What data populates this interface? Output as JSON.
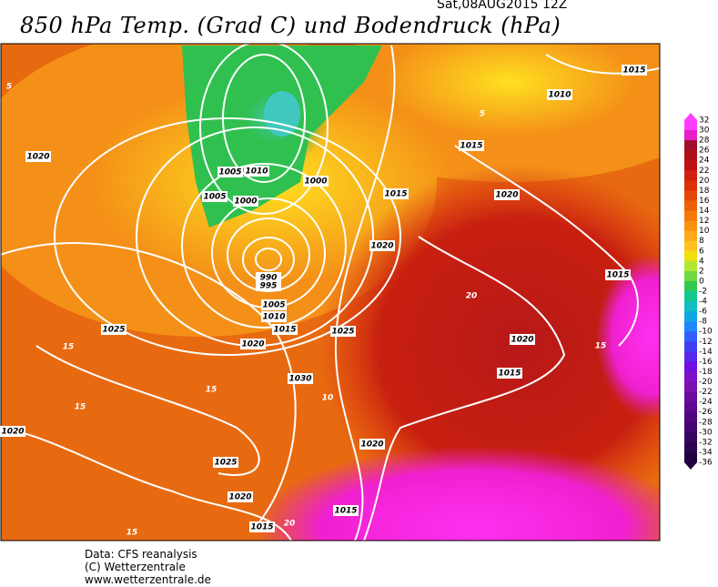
{
  "header": {
    "title": "850 hPa Temp. (Grad C) und Bodendruck (hPa)",
    "date": "Sat,08AUG2015 12Z"
  },
  "footer": {
    "lines": [
      "Data: CFS reanalysis",
      "(C) Wetterzentrale",
      "www.wetterzentrale.de"
    ]
  },
  "colorbar": {
    "labels": [
      "32",
      "30",
      "28",
      "26",
      "24",
      "22",
      "20",
      "18",
      "16",
      "14",
      "12",
      "10",
      "8",
      "6",
      "4",
      "2",
      "0",
      "-2",
      "-4",
      "-6",
      "-8",
      "-10",
      "-12",
      "-14",
      "-16",
      "-18",
      "-20",
      "-22",
      "-24",
      "-26",
      "-28",
      "-30",
      "-32",
      "-34",
      "-36"
    ],
    "colors": [
      "#ff3cff",
      "#e81ec8",
      "#a0102a",
      "#b01018",
      "#c01010",
      "#d02010",
      "#dc3008",
      "#e44808",
      "#ec6008",
      "#f47808",
      "#fa9010",
      "#ffa818",
      "#ffc020",
      "#f0e010",
      "#b0e830",
      "#70d840",
      "#30c850",
      "#10c890",
      "#10c0c0",
      "#10a8e0",
      "#2088ff",
      "#3060ff",
      "#4040f0",
      "#5828e8",
      "#7010e0",
      "#8010c8",
      "#7a10b0",
      "#6c0aa0",
      "#5e0890",
      "#500680",
      "#440570",
      "#380460",
      "#2c0350",
      "#200240"
    ]
  },
  "map_labels": [
    "1010",
    "1015",
    "1020",
    "1005",
    "1010",
    "1000",
    "1005",
    "1000",
    "1015",
    "1015",
    "1020",
    "1020",
    "990",
    "995",
    "1005",
    "1010",
    "1015",
    "1025",
    "1025",
    "1020",
    "1015",
    "1020",
    "1015",
    "1030",
    "1020",
    "1020",
    "1025",
    "1020",
    "1015",
    "1015",
    "5",
    "5",
    "15",
    "15",
    "10",
    "15",
    "15",
    "20",
    "20",
    "15"
  ]
}
